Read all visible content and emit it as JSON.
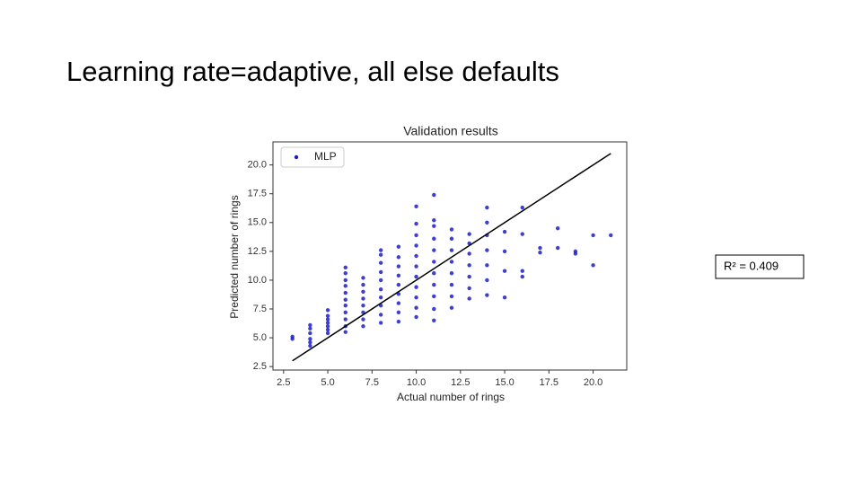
{
  "slide_title": "Learning rate=adaptive, all else defaults",
  "annotation": "R² = 0.409",
  "chart_data": {
    "type": "scatter",
    "title": "Validation results",
    "x_label": "Actual number of rings",
    "y_label": "Predicted number of rings",
    "xlim": [
      1.9,
      21.9
    ],
    "ylim": [
      2.2,
      22.0
    ],
    "xticks": [
      2.5,
      {
        "value": 5,
        "label": "5.0"
      },
      7.5,
      {
        "value": 10,
        "label": "10.0"
      },
      12.5,
      {
        "value": 15,
        "label": "15.0"
      },
      17.5,
      {
        "value": 20,
        "label": "20.0"
      }
    ],
    "yticks": [
      2.5,
      {
        "value": 5,
        "label": "5.0"
      },
      7.5,
      {
        "value": 10,
        "label": "10.0"
      },
      12.5,
      {
        "value": 15,
        "label": "15.0"
      },
      17.5,
      {
        "value": 20,
        "label": "20.0"
      }
    ],
    "grid": false,
    "legend": "upper left",
    "series": [
      {
        "name": "MLP",
        "color": "#1c1cc8",
        "x": [
          3,
          3,
          4,
          4,
          4,
          4,
          4,
          4,
          5,
          5,
          5,
          5,
          5,
          5,
          5,
          6,
          6,
          6,
          6,
          6,
          6,
          6,
          6,
          6,
          6,
          6,
          7,
          7,
          7,
          7,
          7,
          7,
          7,
          7,
          8,
          8,
          8,
          8,
          8,
          8,
          8,
          8,
          8,
          8,
          9,
          9,
          9,
          9,
          9,
          9,
          9,
          9,
          9,
          10,
          10,
          10,
          10,
          10,
          10,
          10,
          10,
          10,
          10,
          10,
          11,
          11,
          11,
          11,
          11,
          11,
          11,
          11,
          11,
          11,
          11,
          12,
          12,
          12,
          12,
          12,
          12,
          12,
          12,
          13,
          13,
          13,
          13,
          13,
          13,
          13,
          14,
          14,
          14,
          14,
          14,
          14,
          14,
          15,
          15,
          15,
          15,
          16,
          16,
          16,
          16,
          17,
          17,
          18,
          18,
          19,
          19,
          20,
          20,
          21
        ],
        "values": [
          4.9,
          5.1,
          4.3,
          4.6,
          4.9,
          5.4,
          5.8,
          6.1,
          5.4,
          5.7,
          6.0,
          6.3,
          6.6,
          6.9,
          7.4,
          5.5,
          6.0,
          6.6,
          7.2,
          7.8,
          8.3,
          8.9,
          9.5,
          10.0,
          10.6,
          11.1,
          6.0,
          6.6,
          7.2,
          7.8,
          8.4,
          9.0,
          9.6,
          10.2,
          6.3,
          7.0,
          7.8,
          8.5,
          9.2,
          10.0,
          10.7,
          11.5,
          12.2,
          12.6,
          6.4,
          7.2,
          8.0,
          8.8,
          9.6,
          10.4,
          11.2,
          12.0,
          12.9,
          6.8,
          7.6,
          8.5,
          9.4,
          10.3,
          11.2,
          12.1,
          13.0,
          13.9,
          14.9,
          16.4,
          6.5,
          7.5,
          8.6,
          9.6,
          10.6,
          11.6,
          12.6,
          13.6,
          14.7,
          15.2,
          17.4,
          7.6,
          8.6,
          9.6,
          10.6,
          11.6,
          12.6,
          13.6,
          14.4,
          8.4,
          9.3,
          10.3,
          11.3,
          12.3,
          13.2,
          14.0,
          8.7,
          10.0,
          11.3,
          12.6,
          13.9,
          15.0,
          16.3,
          8.5,
          10.8,
          12.5,
          14.2,
          10.3,
          10.8,
          14.0,
          16.3,
          12.4,
          12.8,
          12.8,
          14.5,
          12.3,
          12.5,
          11.3,
          13.9,
          13.9
        ]
      }
    ],
    "reference_line": {
      "color": "#000000",
      "x": [
        3,
        21
      ],
      "values": [
        3,
        21
      ]
    }
  }
}
